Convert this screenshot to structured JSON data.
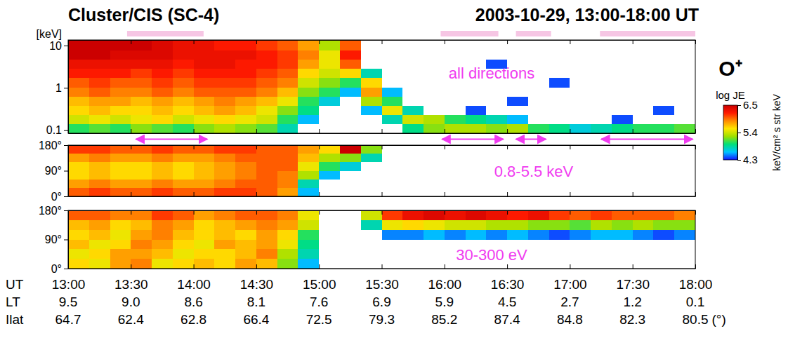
{
  "chart_data": {
    "type": "spectrogram",
    "title": "Cluster/CIS (SC-4)",
    "subtitle": "2003-10-29, 13:00-18:00 UT",
    "species": "O⁺",
    "xlabel": "UT",
    "x": [
      13,
      13.1667,
      13.3333,
      13.5,
      13.6667,
      13.8333,
      14,
      14.1667,
      14.3333,
      14.5,
      14.6667,
      14.8333,
      15,
      15.1667,
      15.3333,
      15.5,
      15.6667,
      15.8333,
      16,
      16.1667,
      16.3333,
      16.5,
      16.6667,
      16.8333,
      17,
      17.1667,
      17.3333,
      17.5,
      17.6667,
      17.8333,
      18
    ],
    "xlim": [
      13,
      18
    ],
    "xticks": [
      {
        "value": 13,
        "label": "13:00"
      },
      {
        "value": 13.5,
        "label": "13:30"
      },
      {
        "value": 14,
        "label": "14:00"
      },
      {
        "value": 14.5,
        "label": "14:30"
      },
      {
        "value": 15,
        "label": "15:00"
      },
      {
        "value": 15.5,
        "label": "15:30"
      },
      {
        "value": 16,
        "label": "16:00"
      },
      {
        "value": 16.5,
        "label": "16:30"
      },
      {
        "value": 17,
        "label": "17:00"
      },
      {
        "value": 17.5,
        "label": "17:30"
      },
      {
        "value": 18,
        "label": "18:00"
      }
    ],
    "ephemeris": [
      {
        "name": "LT",
        "labels": [
          "9.5",
          "9.0",
          "8.6",
          "8.1",
          "7.6",
          "6.9",
          "5.9",
          "4.5",
          "2.7",
          "1.2",
          "0.1"
        ]
      },
      {
        "name": "Ilat",
        "labels": [
          "64.7",
          "62.4",
          "62.8",
          "66.4",
          "72.5",
          "79.3",
          "85.2",
          "87.4",
          "84.8",
          "82.3",
          "80.5"
        ]
      }
    ],
    "ephemeris_unit": "(°)",
    "highlights": [
      [
        13.47,
        14.08
      ],
      [
        15.97,
        16.43
      ],
      [
        16.57,
        16.85
      ],
      [
        17.24,
        18
      ]
    ],
    "arrows": [
      [
        13.54,
        14.11
      ],
      [
        15.98,
        16.47
      ],
      [
        16.57,
        16.81
      ],
      [
        17.25,
        17.98
      ]
    ],
    "colorbar": {
      "title": "log JE",
      "unit": "keV/cm² s str keV",
      "range": [
        4.3,
        6.5
      ],
      "ticks": [
        4.3,
        5.4,
        6.5
      ]
    },
    "panels": [
      {
        "label": "all directions",
        "log": "y",
        "ylabel": "[keV]",
        "y": [
          0.085,
          0.14,
          0.23,
          0.38,
          0.62,
          1,
          1.7,
          2.8,
          4.6,
          7.6,
          13.5
        ],
        "ylim": [
          0.085,
          13.5
        ],
        "yticks": [
          0.1,
          1,
          10
        ],
        "cells": [
          [
            5.0,
            5.1,
            5.0,
            5.2,
            5.1,
            5.0,
            5.2,
            5.3,
            5.2,
            5.1,
            4.8,
            null,
            null,
            null,
            null,
            null,
            4.9,
            5.2,
            5.3,
            5.3,
            5.2,
            5.3,
            5.0,
            4.9,
            4.7,
            4.8,
            4.9,
            5.0,
            5.0,
            5.1
          ],
          [
            5.4,
            5.5,
            5.4,
            5.5,
            5.6,
            5.4,
            5.5,
            5.6,
            5.5,
            5.4,
            5.0,
            4.6,
            null,
            null,
            null,
            4.8,
            5.4,
            5.3,
            5.0,
            4.9,
            4.8,
            4.6,
            null,
            null,
            null,
            null,
            4.4,
            null,
            null,
            null
          ],
          [
            5.6,
            5.7,
            5.6,
            5.6,
            5.7,
            5.6,
            5.7,
            5.8,
            5.7,
            5.5,
            5.2,
            4.9,
            null,
            null,
            4.6,
            5.5,
            4.8,
            null,
            null,
            4.4,
            null,
            null,
            null,
            null,
            null,
            null,
            null,
            null,
            4.4,
            null
          ],
          [
            5.7,
            5.8,
            5.8,
            5.7,
            5.8,
            5.7,
            5.8,
            5.9,
            5.8,
            5.7,
            5.5,
            5.0,
            4.7,
            null,
            5.3,
            5.0,
            null,
            null,
            null,
            null,
            null,
            4.4,
            null,
            null,
            null,
            null,
            null,
            null,
            null,
            null
          ],
          [
            5.9,
            6.0,
            5.9,
            5.9,
            6.0,
            5.9,
            6.0,
            6.0,
            6.0,
            5.9,
            5.7,
            5.2,
            5.0,
            4.6,
            5.8,
            4.6,
            null,
            null,
            null,
            null,
            null,
            null,
            null,
            null,
            null,
            null,
            null,
            null,
            null,
            null
          ],
          [
            6.0,
            6.1,
            6.0,
            6.0,
            6.1,
            6.0,
            6.1,
            6.1,
            6.1,
            6.0,
            5.9,
            5.4,
            5.2,
            5.0,
            5.6,
            null,
            null,
            null,
            null,
            null,
            null,
            null,
            null,
            4.4,
            null,
            null,
            null,
            null,
            null,
            null
          ],
          [
            6.2,
            6.2,
            6.2,
            6.1,
            6.2,
            6.1,
            6.2,
            6.2,
            6.2,
            6.1,
            6.0,
            5.6,
            5.4,
            5.6,
            4.8,
            null,
            null,
            null,
            null,
            null,
            null,
            null,
            null,
            null,
            null,
            null,
            null,
            null,
            null,
            null
          ],
          [
            6.3,
            6.3,
            6.3,
            6.3,
            6.3,
            6.2,
            6.3,
            6.3,
            6.2,
            6.2,
            6.1,
            5.8,
            5.5,
            6.0,
            null,
            null,
            null,
            null,
            null,
            null,
            4.4,
            null,
            null,
            null,
            null,
            null,
            null,
            null,
            null,
            null
          ],
          [
            6.5,
            6.5,
            6.4,
            6.4,
            6.4,
            6.3,
            6.3,
            6.3,
            6.3,
            6.2,
            6.1,
            5.9,
            5.5,
            6.2,
            null,
            null,
            null,
            null,
            null,
            null,
            null,
            null,
            null,
            null,
            null,
            null,
            null,
            null,
            null,
            null
          ],
          [
            6.5,
            6.5,
            6.5,
            6.5,
            6.4,
            6.3,
            6.3,
            6.2,
            6.2,
            6.1,
            6.0,
            5.8,
            5.3,
            6.0,
            null,
            null,
            null,
            null,
            null,
            null,
            null,
            null,
            null,
            null,
            null,
            null,
            null,
            null,
            null,
            null
          ]
        ]
      },
      {
        "label": "0.8-5.5 keV",
        "y": [
          0,
          30,
          60,
          90,
          120,
          150,
          180
        ],
        "ylim": [
          0,
          180
        ],
        "yticks": [
          {
            "value": 0,
            "label": "0°"
          },
          {
            "value": 90,
            "label": "90°"
          },
          {
            "value": 180,
            "label": "180°"
          }
        ],
        "cells": [
          [
            6.0,
            6.1,
            6.0,
            6.0,
            6.1,
            6.0,
            6.0,
            6.1,
            6.1,
            6.0,
            5.8,
            4.6,
            null,
            null,
            null,
            null,
            null,
            null,
            null,
            null,
            null,
            null,
            null,
            null,
            null,
            null,
            null,
            null,
            null,
            null
          ],
          [
            5.8,
            5.9,
            5.8,
            5.8,
            5.9,
            5.8,
            5.8,
            5.9,
            6.0,
            6.0,
            5.9,
            4.8,
            null,
            null,
            null,
            null,
            null,
            null,
            null,
            null,
            null,
            null,
            null,
            null,
            null,
            null,
            null,
            null,
            null,
            null
          ],
          [
            5.6,
            5.7,
            5.6,
            5.6,
            5.7,
            5.6,
            5.7,
            5.8,
            5.9,
            6.0,
            5.9,
            5.3,
            4.6,
            null,
            null,
            null,
            null,
            null,
            null,
            null,
            null,
            null,
            null,
            null,
            null,
            null,
            null,
            null,
            null,
            null
          ],
          [
            5.6,
            5.7,
            5.6,
            5.6,
            5.7,
            5.6,
            5.7,
            5.8,
            5.9,
            6.0,
            6.0,
            5.5,
            5.0,
            4.7,
            null,
            null,
            null,
            null,
            null,
            null,
            null,
            null,
            null,
            null,
            null,
            null,
            null,
            null,
            null,
            null
          ],
          [
            5.8,
            5.9,
            5.8,
            5.8,
            5.9,
            5.8,
            5.8,
            5.9,
            6.0,
            6.0,
            6.0,
            5.7,
            5.3,
            5.2,
            4.8,
            null,
            null,
            null,
            null,
            null,
            null,
            null,
            null,
            null,
            null,
            null,
            null,
            null,
            null,
            null
          ],
          [
            6.1,
            6.1,
            6.0,
            6.0,
            6.1,
            6.0,
            6.0,
            6.1,
            6.1,
            6.0,
            6.0,
            5.8,
            5.6,
            6.5,
            5.2,
            null,
            null,
            null,
            null,
            null,
            null,
            null,
            null,
            null,
            null,
            null,
            null,
            null,
            null,
            null
          ]
        ]
      },
      {
        "label": "30-300 eV",
        "y": [
          0,
          30,
          60,
          90,
          120,
          150,
          180
        ],
        "ylim": [
          0,
          180
        ],
        "yticks": [
          {
            "value": 0,
            "label": "0°"
          },
          {
            "value": 90,
            "label": "90°"
          },
          {
            "value": 180,
            "label": "180°"
          }
        ],
        "cells": [
          [
            5.6,
            5.5,
            5.8,
            5.9,
            5.5,
            5.6,
            5.7,
            5.6,
            5.8,
            5.7,
            5.2,
            4.6,
            null,
            null,
            null,
            null,
            null,
            null,
            null,
            null,
            null,
            null,
            null,
            null,
            null,
            null,
            null,
            null,
            null,
            null
          ],
          [
            5.5,
            5.6,
            5.8,
            5.8,
            5.7,
            5.5,
            5.6,
            5.6,
            5.7,
            5.9,
            5.3,
            4.8,
            null,
            null,
            null,
            null,
            null,
            null,
            null,
            null,
            null,
            null,
            null,
            null,
            null,
            null,
            null,
            null,
            null,
            null
          ],
          [
            5.7,
            5.5,
            5.6,
            5.9,
            5.8,
            5.6,
            5.5,
            5.8,
            5.7,
            5.8,
            5.5,
            4.9,
            null,
            null,
            null,
            null,
            null,
            null,
            null,
            null,
            null,
            null,
            null,
            null,
            null,
            null,
            null,
            null,
            null,
            null
          ],
          [
            5.6,
            5.7,
            5.5,
            5.8,
            5.9,
            5.7,
            5.6,
            5.7,
            5.6,
            5.8,
            5.6,
            5.0,
            null,
            null,
            null,
            4.5,
            4.5,
            4.6,
            4.5,
            4.6,
            4.5,
            4.6,
            4.5,
            4.4,
            4.5,
            4.6,
            4.6,
            4.5,
            4.4,
            4.5
          ],
          [
            5.7,
            5.8,
            5.6,
            5.7,
            5.9,
            5.8,
            5.6,
            5.7,
            5.8,
            5.9,
            5.8,
            5.4,
            null,
            null,
            4.8,
            5.5,
            5.6,
            5.5,
            5.4,
            5.4,
            5.3,
            5.3,
            5.2,
            5.2,
            5.1,
            5.3,
            5.2,
            5.3,
            5.2,
            5.2
          ],
          [
            6.0,
            6.0,
            5.9,
            5.9,
            6.1,
            6.0,
            5.8,
            5.9,
            6.0,
            6.0,
            5.9,
            5.5,
            null,
            null,
            5.4,
            6.1,
            6.3,
            6.4,
            6.3,
            6.4,
            6.3,
            6.2,
            6.3,
            6.1,
            6.0,
            6.1,
            6.0,
            6.0,
            6.0,
            5.9
          ]
        ]
      }
    ]
  }
}
